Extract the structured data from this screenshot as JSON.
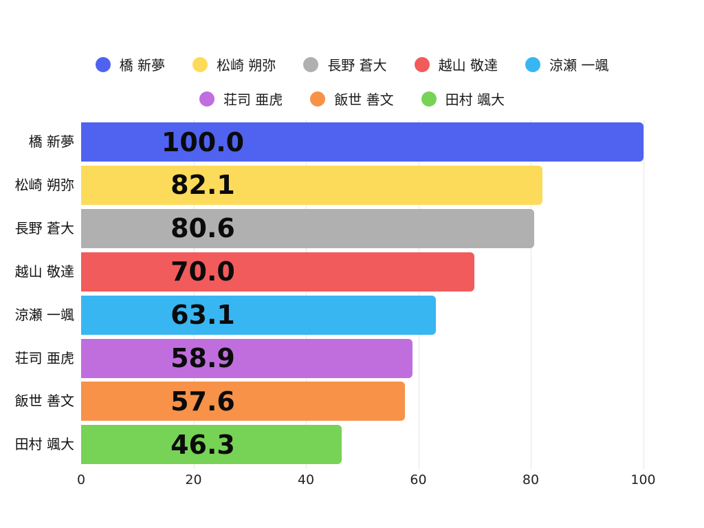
{
  "chart_data": {
    "type": "bar",
    "orientation": "horizontal",
    "title": "",
    "xlabel": "",
    "ylabel": "",
    "categories": [
      "橋 新夢",
      "松崎 朔弥",
      "長野 蒼大",
      "越山 敬達",
      "涼瀬 一颯",
      "荘司 亜虎",
      "飯世 善文",
      "田村 颯大"
    ],
    "values": [
      100.0,
      82.1,
      80.6,
      70.0,
      63.1,
      58.9,
      57.6,
      46.3
    ],
    "value_labels": [
      "100.0",
      "82.1",
      "80.6",
      "70.0",
      "63.1",
      "58.9",
      "57.6",
      "46.3"
    ],
    "bar_colors": [
      "#4F63F0",
      "#FDDB5A",
      "#B0B0B0",
      "#F25B5B",
      "#38B6F2",
      "#C06EDE",
      "#F79248",
      "#76D356"
    ],
    "xlim": [
      0,
      100
    ],
    "x_ticks": [
      0,
      20,
      40,
      60,
      80,
      100
    ],
    "grid": "vertical",
    "legend_position": "top",
    "legend_rows": [
      [
        "橋 新夢",
        "松崎 朔弥",
        "長野 蒼大",
        "越山 敬達",
        "涼瀬 一颯"
      ],
      [
        "荘司 亜虎",
        "飯世 善文",
        "田村 颯大"
      ]
    ]
  },
  "style": {
    "background": "#FFFFFF",
    "gridline_color": "#E6E6E6",
    "label_color": "#111111",
    "value_color": "#0B0B0B",
    "tick_color": "#222222"
  }
}
